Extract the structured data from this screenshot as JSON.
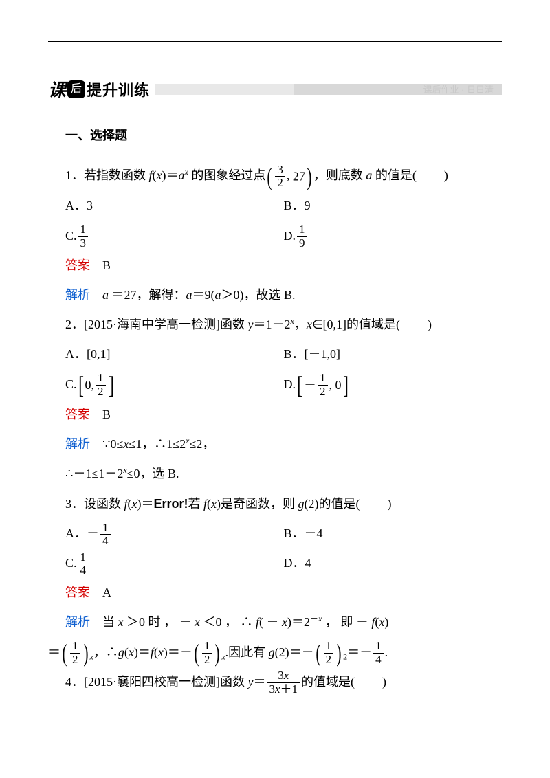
{
  "banner": {
    "ke": "课",
    "hou": "后",
    "main": "提升训练",
    "sub": "课后作业 · 日日清"
  },
  "section": {
    "title": "一、选择题"
  },
  "q1": {
    "stem_a": "1．若指数函数 ",
    "fx": "f(x)＝aˣ",
    "stem_b": " 的图象经过点",
    "pt_n1": "3",
    "pt_d1": "2",
    "pt_sep": ", ",
    "pt_v2": "27",
    "stem_c": "，则底数 a 的值是(",
    "stem_d": ")",
    "optA": "A．3",
    "optB": "B．9",
    "optC_pre": "C.",
    "optC_n": "1",
    "optC_d": "3",
    "optD_pre": "D.",
    "optD_n": "1",
    "optD_d": "9",
    "ans_lbl": "答案",
    "ans": "B",
    "exp_lbl": "解析",
    "exp_a": "a ＝27，解得：a＝9(a＞0)，故选 B."
  },
  "q2": {
    "stem_a": "2．[2015·",
    "stem_b": "海南中学高一检测",
    "stem_c": "]函数 y＝1－2ˣ，x∈[0,1]的值域是(",
    "stem_d": ")",
    "optA": "A．[0,1]",
    "optB": "B．[－1,0]",
    "optC_pre": "C.",
    "optC_0": "0, ",
    "optC_n": "1",
    "optC_d": "2",
    "optD_pre": "D.",
    "optD_neg": "－",
    "optD_n": "1",
    "optD_d": "2",
    "optD_0": ", 0",
    "ans_lbl": "答案",
    "ans": "B",
    "exp_lbl": "解析",
    "exp_a": "∵0≤x≤1，∴1≤2ˣ≤2，",
    "exp_b": "∴－1≤1－2ˣ≤0，选 B."
  },
  "q3": {
    "stem_a": "3．设函数 f(x)＝",
    "err": "Error!",
    "stem_b": "若 f(x)是奇函数，则 g(2)的值是(",
    "stem_c": ")",
    "optA_pre": "A．－",
    "optA_n": "1",
    "optA_d": "4",
    "optB": "B．－4",
    "optC_pre": "C.",
    "optC_n": "1",
    "optC_d": "4",
    "optD": "D．4",
    "ans_lbl": "答案",
    "ans": "A",
    "exp_lbl": "解析",
    "exp_a": "当 x ＞0 时 ， － x ＜0 ， ∴ f( － x)＝2⁻ˣ ， 即 － f(x)",
    "exp_b_eq": "＝",
    "exp_half_n": "1",
    "exp_half_d": "2",
    "exp_sub": "x",
    "exp_c": "，∴g(x)＝f(x)＝－",
    "exp_d": ".因此有 g(2)＝－",
    "exp_sub2": "2",
    "exp_e": "＝－",
    "exp_q_n": "1",
    "exp_q_d": "4",
    "exp_f": "."
  },
  "q4": {
    "stem_a": "4．[2015·",
    "stem_b": "襄阳四校高一检测",
    "stem_c": "]函数 y＝",
    "num": "3x",
    "den": "3x＋1",
    "stem_d": "的值域是(",
    "stem_e": ")"
  }
}
